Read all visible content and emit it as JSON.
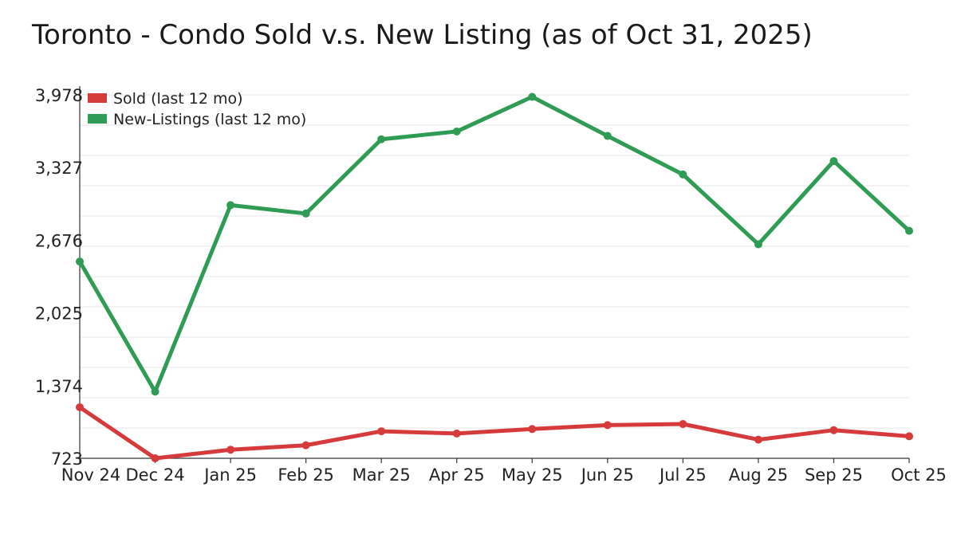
{
  "chart_data": {
    "type": "line",
    "title": "Toronto - Condo Sold v.s. New Listing (as of Oct 31, 2025)",
    "categories": [
      "Nov 24",
      "Dec 24",
      "Jan 25",
      "Feb 25",
      "Mar 25",
      "Apr 25",
      "May 25",
      "Jun 25",
      "Jul 25",
      "Aug 25",
      "Sep 25",
      "Oct 25"
    ],
    "y_ticks": [
      "3,978",
      "3,327",
      "2,676",
      "2,025",
      "1,374",
      "723"
    ],
    "ylim": [
      723,
      3978
    ],
    "grid": true,
    "legend_position": "top-left",
    "series": [
      {
        "name": "Sold (last 12 mo)",
        "color": "#d63b3b",
        "values": [
          1180,
          723,
          800,
          840,
          965,
          945,
          985,
          1020,
          1030,
          890,
          975,
          920
        ]
      },
      {
        "name": "New-Listings (last 12 mo)",
        "color": "#2e9c52",
        "values": [
          2485,
          1320,
          2990,
          2915,
          3580,
          3650,
          3960,
          3610,
          3265,
          2640,
          3385,
          2760
        ]
      }
    ]
  }
}
